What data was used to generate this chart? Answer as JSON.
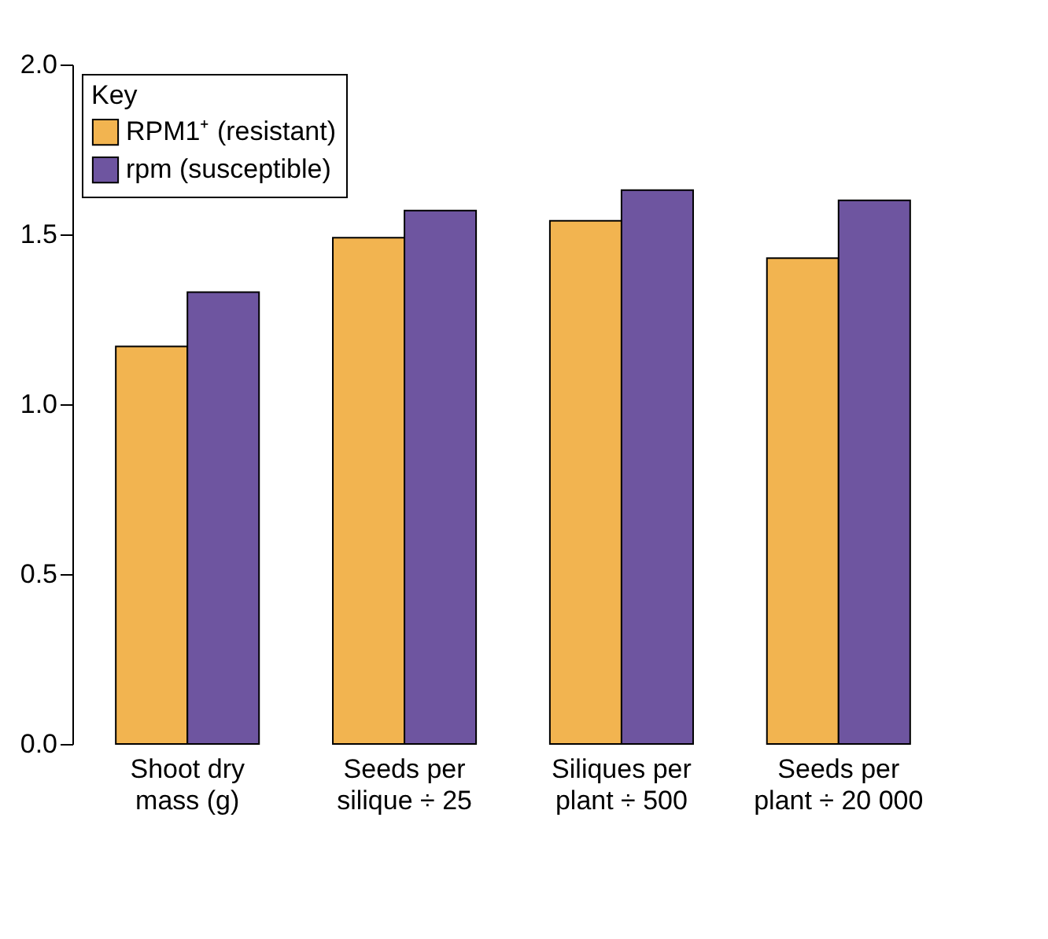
{
  "chart_data": {
    "type": "bar",
    "legend_title": "Key",
    "categories": [
      "Shoot dry\nmass (g)",
      "Seeds per\nsilique ÷ 25",
      "Siliques per\nplant ÷ 500",
      "Seeds per\nplant ÷ 20 000"
    ],
    "series": [
      {
        "name": "RPM1⁺ (resistant)",
        "color": "#f2b450",
        "values": [
          1.17,
          1.49,
          1.54,
          1.43
        ]
      },
      {
        "name": "rpm (susceptible)",
        "color": "#6e55a0",
        "values": [
          1.33,
          1.57,
          1.63,
          1.6
        ]
      }
    ],
    "ylim": [
      0,
      2
    ],
    "yticks": [
      {
        "value": 0,
        "label": "0.0"
      },
      {
        "value": 0.5,
        "label": "0.5"
      },
      {
        "value": 1,
        "label": "1.0"
      },
      {
        "value": 1.5,
        "label": "1.5"
      },
      {
        "value": 2,
        "label": "2.0"
      }
    ],
    "grid": false,
    "legend": "top left"
  }
}
